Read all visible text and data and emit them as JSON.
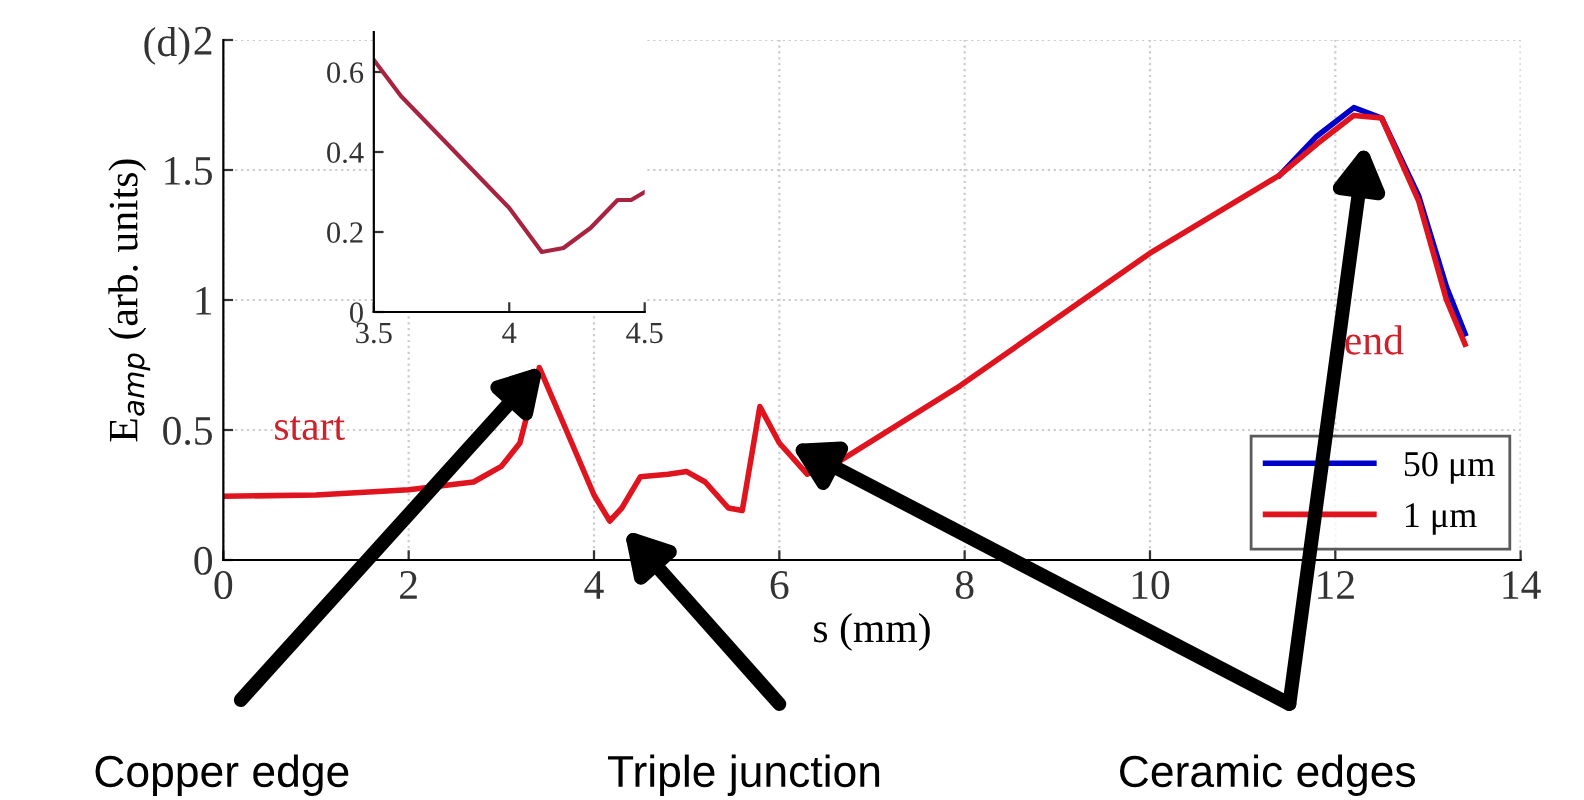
{
  "chart_data": [
    {
      "type": "line",
      "xlabel": "s (mm)",
      "ylabel": "E$_{amp}$ (arb. units)",
      "xlim": [
        0,
        14
      ],
      "xticks": [
        0,
        2,
        4,
        6,
        8,
        10,
        12,
        14
      ],
      "ylim": [
        0,
        2
      ],
      "yticks": [
        0,
        0.5,
        1,
        1.5,
        2
      ],
      "grid": true,
      "legend": "bottom right",
      "line_style": "solid",
      "series": [
        {
          "name": "50 μm",
          "color": "#0000c8",
          "x": [
            11.4,
            11.8,
            12.2,
            12.5,
            12.9,
            13.2,
            13.4
          ],
          "values": [
            1.48,
            1.63,
            1.74,
            1.7,
            1.4,
            1.05,
            0.87
          ]
        },
        {
          "name": "1 μm",
          "color": "#e0141e",
          "x": [
            0,
            1,
            2,
            2.7,
            3.0,
            3.2,
            3.41,
            3.7,
            4.0,
            4.17,
            4.3,
            4.5,
            4.8,
            5.0,
            5.2,
            5.45,
            5.6,
            5.79,
            6.0,
            6.3,
            6.65,
            7.95,
            10,
            11.4,
            11.8,
            12.2,
            12.5,
            12.9,
            13.2,
            13.4
          ],
          "values": [
            0.245,
            0.25,
            0.27,
            0.3,
            0.36,
            0.45,
            0.74,
            0.5,
            0.25,
            0.15,
            0.2,
            0.32,
            0.33,
            0.34,
            0.3,
            0.2,
            0.19,
            0.59,
            0.45,
            0.33,
            0.38,
            0.67,
            1.18,
            1.48,
            1.6,
            1.71,
            1.7,
            1.38,
            1.0,
            0.83
          ]
        }
      ],
      "annotations": [
        "(d)",
        {
          "text": "start",
          "x": 0,
          "y": 0.245
        },
        {
          "text": "end",
          "x": 13.4,
          "y": 0.83
        },
        "Copper edge",
        "Triple junction",
        "Ceramic edges"
      ]
    },
    {
      "type": "line",
      "xlim": [
        3.5,
        4.5
      ],
      "xticks": [
        3.5,
        4,
        4.5
      ],
      "ylim": [
        0,
        0.7
      ],
      "yticks": [
        0,
        0.2,
        0.4,
        0.6
      ],
      "grid": false,
      "series": [
        {
          "color": "#a8233f",
          "x": [
            3.5,
            3.6,
            3.7,
            3.8,
            3.9,
            4.0,
            4.12,
            4.2,
            4.3,
            4.4,
            4.45,
            4.5
          ],
          "values": [
            0.63,
            0.54,
            0.47,
            0.4,
            0.33,
            0.26,
            0.15,
            0.16,
            0.21,
            0.28,
            0.28,
            0.3
          ]
        }
      ]
    }
  ]
}
